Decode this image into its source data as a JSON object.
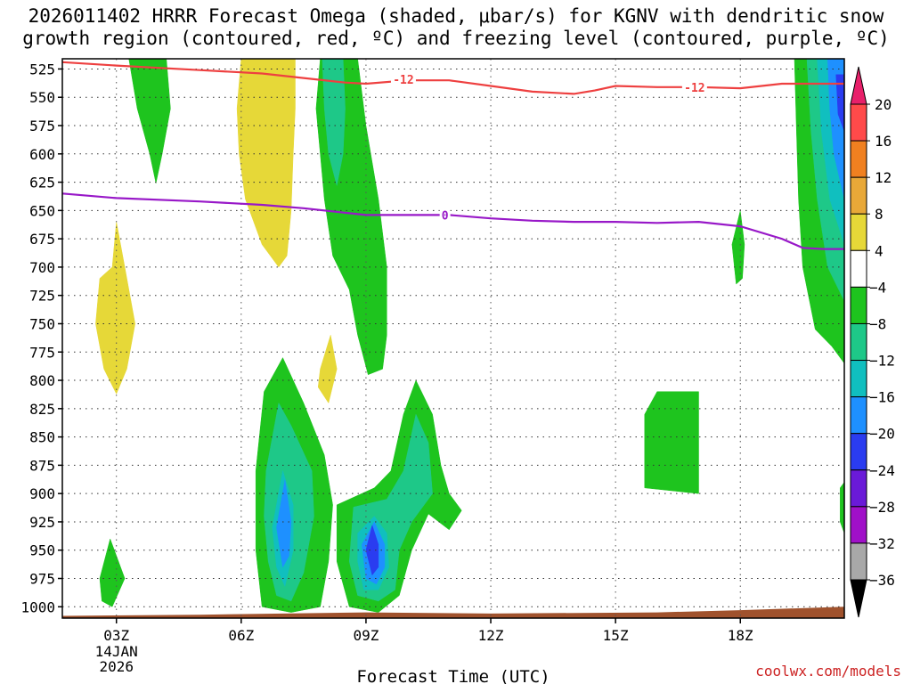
{
  "title_line1": "2026011402 HRRR Forecast Omega (shaded, μbar/s) for KGNV with dendritic snow",
  "title_line2": "growth region (contoured, red, ºC) and freezing level (contoured, purple, ºC)",
  "credit": "coolwx.com/models",
  "chart_data": {
    "type": "contour",
    "title": "2026011402 HRRR Forecast Omega (shaded, μbar/s) for KGNV with dendritic snow growth region (contoured, red, ºC) and freezing level (contoured, purple, ºC)",
    "xlabel": "Forecast Time (UTC)",
    "ylabel": "",
    "x_range_hours": [
      1.7,
      20.5
    ],
    "y_range_mb": [
      516,
      1010
    ],
    "y_ticks": [
      525,
      550,
      575,
      600,
      625,
      650,
      675,
      700,
      725,
      750,
      775,
      800,
      825,
      850,
      875,
      900,
      925,
      950,
      975,
      1000
    ],
    "x_ticks": [
      {
        "hour": 3,
        "label": "03Z"
      },
      {
        "hour": 6,
        "label": "06Z"
      },
      {
        "hour": 9,
        "label": "09Z"
      },
      {
        "hour": 12,
        "label": "12Z"
      },
      {
        "hour": 15,
        "label": "15Z"
      },
      {
        "hour": 18,
        "label": "18Z"
      }
    ],
    "date_label": [
      "14JAN",
      "2026"
    ],
    "grid": true,
    "colorbar": {
      "labels": [
        20,
        16,
        12,
        8,
        4,
        -4,
        -8,
        -12,
        -16,
        -20,
        -24,
        -28,
        -32,
        -36
      ],
      "bins": [
        {
          "lo": 16,
          "hi": 20,
          "color": "#ff4a4a"
        },
        {
          "lo": 12,
          "hi": 16,
          "color": "#f08020"
        },
        {
          "lo": 8,
          "hi": 12,
          "color": "#e8a838"
        },
        {
          "lo": 4,
          "hi": 8,
          "color": "#e6d838"
        },
        {
          "lo": -4,
          "hi": 4,
          "color": "#ffffff"
        },
        {
          "lo": -8,
          "hi": -4,
          "color": "#1ec41e"
        },
        {
          "lo": -12,
          "hi": -8,
          "color": "#1ec888"
        },
        {
          "lo": -16,
          "hi": -12,
          "color": "#10bfbf"
        },
        {
          "lo": -20,
          "hi": -16,
          "color": "#1e90ff"
        },
        {
          "lo": -24,
          "hi": -20,
          "color": "#2a3cf0"
        },
        {
          "lo": -28,
          "hi": -24,
          "color": "#6a1ad8"
        },
        {
          "lo": -32,
          "hi": -28,
          "color": "#a010c8"
        },
        {
          "lo": -36,
          "hi": -32,
          "color": "#a8a8a8"
        }
      ],
      "top_arrow_color": "#e8206a",
      "bottom_arrow_color": "#000000"
    },
    "contours": [
      {
        "name": "-12",
        "color": "#ee4040",
        "label": "-12",
        "points": [
          [
            1.7,
            519
          ],
          [
            3,
            522
          ],
          [
            5,
            526
          ],
          [
            6.5,
            529
          ],
          [
            7.5,
            533
          ],
          [
            8.5,
            537
          ],
          [
            9,
            538
          ],
          [
            10,
            535
          ],
          [
            11,
            535
          ],
          [
            12,
            540
          ],
          [
            13,
            545
          ],
          [
            14,
            547
          ],
          [
            14.5,
            544
          ],
          [
            15,
            540
          ],
          [
            16,
            541
          ],
          [
            17,
            541
          ],
          [
            18,
            542
          ],
          [
            19,
            538
          ],
          [
            20.5,
            538
          ]
        ]
      },
      {
        "name": "0",
        "color": "#9818c8",
        "label": "0",
        "points": [
          [
            1.7,
            635
          ],
          [
            3,
            639
          ],
          [
            5,
            642
          ],
          [
            6.5,
            645
          ],
          [
            7.5,
            648
          ],
          [
            8.5,
            652
          ],
          [
            9,
            654
          ],
          [
            10,
            654
          ],
          [
            11,
            654
          ],
          [
            12,
            657
          ],
          [
            13,
            659
          ],
          [
            14,
            660
          ],
          [
            15,
            660
          ],
          [
            16,
            661
          ],
          [
            17,
            660
          ],
          [
            18,
            664
          ],
          [
            19,
            675
          ],
          [
            19.5,
            683
          ],
          [
            20,
            684
          ],
          [
            20.5,
            684
          ]
        ]
      }
    ],
    "contour_labels": [
      {
        "text": "-12",
        "hour": 9.9,
        "mb": 534,
        "color": "#ee4040"
      },
      {
        "text": "-12",
        "hour": 16.9,
        "mb": 541,
        "color": "#ee4040"
      },
      {
        "text": "0",
        "hour": 10.9,
        "mb": 654,
        "color": "#9818c8"
      }
    ],
    "shaded_regions": [
      {
        "band": "-8 to -4",
        "color": "#1ec41e",
        "points": [
          [
            3.3,
            516
          ],
          [
            4.2,
            516
          ],
          [
            4.3,
            560
          ],
          [
            4.1,
            600
          ],
          [
            3.95,
            626
          ],
          [
            3.8,
            600
          ],
          [
            3.5,
            560
          ]
        ]
      },
      {
        "band": "4 to 8",
        "color": "#e6d838",
        "points": [
          [
            6,
            516
          ],
          [
            7.3,
            516
          ],
          [
            7.3,
            560
          ],
          [
            7.25,
            600
          ],
          [
            7.2,
            650
          ],
          [
            7.1,
            690
          ],
          [
            6.9,
            700
          ],
          [
            6.5,
            680
          ],
          [
            6.1,
            640
          ],
          [
            5.95,
            600
          ],
          [
            5.9,
            560
          ]
        ]
      },
      {
        "band": "-8 to -4",
        "color": "#1ec41e",
        "points": [
          [
            7.9,
            516
          ],
          [
            8.8,
            516
          ],
          [
            9,
            575
          ],
          [
            9.3,
            640
          ],
          [
            9.5,
            700
          ],
          [
            9.5,
            760
          ],
          [
            9.4,
            790
          ],
          [
            9.05,
            795
          ],
          [
            8.8,
            760
          ],
          [
            8.6,
            720
          ],
          [
            8.2,
            690
          ],
          [
            8,
            640
          ],
          [
            7.9,
            600
          ],
          [
            7.8,
            560
          ]
        ]
      },
      {
        "band": "-12 to -8",
        "color": "#1ec888",
        "points": [
          [
            7.95,
            516
          ],
          [
            8.45,
            516
          ],
          [
            8.5,
            560
          ],
          [
            8.45,
            600
          ],
          [
            8.3,
            628
          ],
          [
            8.1,
            600
          ],
          [
            8.0,
            560
          ]
        ]
      },
      {
        "band": "4 to 8",
        "color": "#e6d838",
        "points": [
          [
            2.9,
            700
          ],
          [
            3.0,
            660
          ],
          [
            3.2,
            700
          ],
          [
            3.45,
            750
          ],
          [
            3.25,
            790
          ],
          [
            3.0,
            812
          ],
          [
            2.7,
            790
          ],
          [
            2.5,
            750
          ],
          [
            2.6,
            710
          ]
        ]
      },
      {
        "band": "4 to 8",
        "color": "#e6d838",
        "points": [
          [
            7.9,
            790
          ],
          [
            8.15,
            760
          ],
          [
            8.3,
            790
          ],
          [
            8.1,
            820
          ],
          [
            7.85,
            806
          ]
        ]
      },
      {
        "band": "-8 to -4",
        "color": "#1ec41e",
        "points": [
          [
            6.55,
            810
          ],
          [
            7.0,
            780
          ],
          [
            7.5,
            820
          ],
          [
            8.0,
            866
          ],
          [
            8.2,
            910
          ],
          [
            8.1,
            960
          ],
          [
            7.9,
            1000
          ],
          [
            7.2,
            1005
          ],
          [
            6.5,
            1000
          ],
          [
            6.35,
            950
          ],
          [
            6.35,
            880
          ]
        ]
      },
      {
        "band": "-12 to -8",
        "color": "#1ec888",
        "points": [
          [
            6.6,
            880
          ],
          [
            6.9,
            820
          ],
          [
            7.2,
            840
          ],
          [
            7.7,
            880
          ],
          [
            7.75,
            920
          ],
          [
            7.5,
            970
          ],
          [
            7.2,
            995
          ],
          [
            6.85,
            990
          ],
          [
            6.65,
            960
          ],
          [
            6.55,
            920
          ]
        ]
      },
      {
        "band": "-16 to -12",
        "color": "#10bfbf",
        "points": [
          [
            6.75,
            930
          ],
          [
            7.0,
            880
          ],
          [
            7.25,
            910
          ],
          [
            7.25,
            950
          ],
          [
            7.05,
            982
          ],
          [
            6.85,
            965
          ]
        ]
      },
      {
        "band": "-20 to -16",
        "color": "#1e90ff",
        "points": [
          [
            6.85,
            930
          ],
          [
            7.05,
            888
          ],
          [
            7.2,
            925
          ],
          [
            7.15,
            955
          ],
          [
            7.0,
            965
          ]
        ]
      },
      {
        "band": "-8 to -4",
        "color": "#1ec41e",
        "points": [
          [
            9.2,
            895
          ],
          [
            9.6,
            880
          ],
          [
            9.9,
            830
          ],
          [
            10.2,
            800
          ],
          [
            10.6,
            830
          ],
          [
            10.8,
            875
          ],
          [
            11,
            900
          ],
          [
            11.3,
            915
          ],
          [
            11.0,
            932
          ],
          [
            10.5,
            918
          ],
          [
            10.1,
            950
          ],
          [
            9.8,
            990
          ],
          [
            9.3,
            1005
          ],
          [
            8.6,
            1000
          ],
          [
            8.3,
            960
          ],
          [
            8.3,
            910
          ]
        ]
      },
      {
        "band": "-12 to -8",
        "color": "#1ec888",
        "points": [
          [
            8.7,
            912
          ],
          [
            9.5,
            905
          ],
          [
            9.9,
            880
          ],
          [
            10.2,
            830
          ],
          [
            10.5,
            855
          ],
          [
            10.6,
            900
          ],
          [
            10.3,
            915
          ],
          [
            10.1,
            925
          ],
          [
            9.8,
            950
          ],
          [
            9.7,
            985
          ],
          [
            9.3,
            995
          ],
          [
            8.8,
            990
          ],
          [
            8.6,
            960
          ]
        ]
      },
      {
        "band": "-16 to -12",
        "color": "#10bfbf",
        "points": [
          [
            8.8,
            935
          ],
          [
            9.2,
            920
          ],
          [
            9.5,
            935
          ],
          [
            9.55,
            965
          ],
          [
            9.3,
            985
          ],
          [
            8.95,
            985
          ],
          [
            8.8,
            960
          ]
        ]
      },
      {
        "band": "-20 to -16",
        "color": "#1e90ff",
        "points": [
          [
            8.9,
            945
          ],
          [
            9.2,
            925
          ],
          [
            9.45,
            945
          ],
          [
            9.45,
            965
          ],
          [
            9.25,
            980
          ],
          [
            9.0,
            975
          ]
        ]
      },
      {
        "band": "-24 to -20",
        "color": "#2a3cf0",
        "points": [
          [
            9.0,
            950
          ],
          [
            9.15,
            928
          ],
          [
            9.3,
            945
          ],
          [
            9.3,
            965
          ],
          [
            9.15,
            972
          ]
        ]
      },
      {
        "band": "-8 to -4",
        "color": "#1ec41e",
        "points": [
          [
            2.6,
            975
          ],
          [
            2.85,
            940
          ],
          [
            3.2,
            975
          ],
          [
            2.9,
            1000
          ],
          [
            2.65,
            995
          ]
        ]
      },
      {
        "band": "-8 to -4",
        "color": "#1ec41e",
        "points": [
          [
            15.7,
            830
          ],
          [
            16.0,
            810
          ],
          [
            17,
            810
          ],
          [
            17,
            900
          ],
          [
            15.7,
            895
          ]
        ]
      },
      {
        "band": "-8 to -4",
        "color": "#1ec41e",
        "points": [
          [
            17.8,
            680
          ],
          [
            18.0,
            650
          ],
          [
            18.1,
            680
          ],
          [
            18.05,
            710
          ],
          [
            17.9,
            715
          ]
        ]
      },
      {
        "band": "4 to 8",
        "color": "#e6d838",
        "points": [
          [
            19.7,
            620
          ],
          [
            19.9,
            580
          ],
          [
            20.0,
            620
          ],
          [
            19.95,
            660
          ],
          [
            19.8,
            680
          ],
          [
            19.7,
            650
          ]
        ]
      },
      {
        "band": "-8 to -4",
        "color": "#1ec41e",
        "points": [
          [
            19.3,
            516
          ],
          [
            20.5,
            516
          ],
          [
            20.5,
            785
          ],
          [
            20.2,
            770
          ],
          [
            19.8,
            755
          ],
          [
            19.5,
            700
          ],
          [
            19.4,
            640
          ],
          [
            19.35,
            580
          ]
        ]
      },
      {
        "band": "-12 to -8",
        "color": "#1ec888",
        "points": [
          [
            19.6,
            516
          ],
          [
            20.5,
            516
          ],
          [
            20.5,
            730
          ],
          [
            20.1,
            700
          ],
          [
            19.85,
            640
          ],
          [
            19.7,
            580
          ]
        ]
      },
      {
        "band": "-16 to -12",
        "color": "#10bfbf",
        "points": [
          [
            19.85,
            516
          ],
          [
            20.5,
            516
          ],
          [
            20.5,
            680
          ],
          [
            20.15,
            640
          ],
          [
            19.95,
            580
          ]
        ]
      },
      {
        "band": "-20 to -16",
        "color": "#1e90ff",
        "points": [
          [
            20.1,
            516
          ],
          [
            20.5,
            516
          ],
          [
            20.5,
            640
          ],
          [
            20.25,
            600
          ],
          [
            20.15,
            560
          ]
        ]
      },
      {
        "band": "-24 to -20",
        "color": "#2a3cf0",
        "points": [
          [
            20.3,
            530
          ],
          [
            20.5,
            530
          ],
          [
            20.5,
            580
          ],
          [
            20.35,
            565
          ]
        ]
      },
      {
        "band": "-8 to -4",
        "color": "#1ec41e",
        "points": [
          [
            20.4,
            895
          ],
          [
            20.5,
            890
          ],
          [
            20.5,
            935
          ],
          [
            20.4,
            925
          ]
        ]
      }
    ],
    "terrain": {
      "color": "#a0522d",
      "points": [
        [
          1.7,
          1008
        ],
        [
          5,
          1007
        ],
        [
          9,
          1005
        ],
        [
          12,
          1006
        ],
        [
          16,
          1005
        ],
        [
          18,
          1003
        ],
        [
          20.5,
          1000
        ]
      ]
    }
  }
}
